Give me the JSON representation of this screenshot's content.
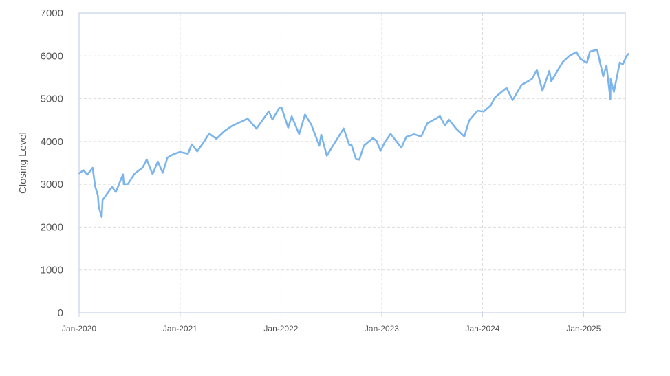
{
  "chart_data": {
    "type": "line",
    "title": "",
    "xlabel": "",
    "ylabel": "Closing Level",
    "ylim": [
      0,
      7000
    ],
    "xlim": [
      "2020-01-01",
      "2025-06-01"
    ],
    "y_ticks": [
      0,
      1000,
      2000,
      3000,
      4000,
      5000,
      6000,
      7000
    ],
    "x_ticks": [
      {
        "date": "2020-01-01",
        "label": "Jan-2020"
      },
      {
        "date": "2021-01-01",
        "label": "Jan-2021"
      },
      {
        "date": "2022-01-01",
        "label": "Jan-2022"
      },
      {
        "date": "2023-01-01",
        "label": "Jan-2023"
      },
      {
        "date": "2024-01-01",
        "label": "Jan-2024"
      },
      {
        "date": "2025-01-01",
        "label": "Jan-2025"
      }
    ],
    "grid": true,
    "legend": "none",
    "line_color": "#7cb5ec",
    "series": [
      {
        "points": [
          [
            "2020-01-02",
            3258
          ],
          [
            "2020-01-17",
            3330
          ],
          [
            "2020-01-31",
            3225
          ],
          [
            "2020-02-19",
            3386
          ],
          [
            "2020-02-28",
            2954
          ],
          [
            "2020-03-09",
            2746
          ],
          [
            "2020-03-12",
            2480
          ],
          [
            "2020-03-16",
            2386
          ],
          [
            "2020-03-23",
            2237
          ],
          [
            "2020-03-26",
            2630
          ],
          [
            "2020-04-08",
            2750
          ],
          [
            "2020-04-29",
            2940
          ],
          [
            "2020-05-13",
            2820
          ],
          [
            "2020-06-08",
            3232
          ],
          [
            "2020-06-11",
            3002
          ],
          [
            "2020-06-26",
            3009
          ],
          [
            "2020-07-20",
            3251
          ],
          [
            "2020-08-18",
            3390
          ],
          [
            "2020-09-02",
            3580
          ],
          [
            "2020-09-23",
            3237
          ],
          [
            "2020-10-12",
            3534
          ],
          [
            "2020-10-30",
            3270
          ],
          [
            "2020-11-16",
            3627
          ],
          [
            "2020-12-08",
            3702
          ],
          [
            "2020-12-31",
            3756
          ],
          [
            "2021-01-29",
            3714
          ],
          [
            "2021-02-12",
            3934
          ],
          [
            "2021-03-04",
            3768
          ],
          [
            "2021-03-26",
            3974
          ],
          [
            "2021-04-16",
            4185
          ],
          [
            "2021-05-12",
            4063
          ],
          [
            "2021-06-11",
            4247
          ],
          [
            "2021-07-09",
            4370
          ],
          [
            "2021-08-16",
            4479
          ],
          [
            "2021-09-02",
            4537
          ],
          [
            "2021-10-04",
            4300
          ],
          [
            "2021-11-18",
            4704
          ],
          [
            "2021-12-01",
            4513
          ],
          [
            "2021-12-27",
            4791
          ],
          [
            "2022-01-03",
            4796
          ],
          [
            "2022-01-27",
            4326
          ],
          [
            "2022-02-09",
            4587
          ],
          [
            "2022-03-08",
            4170
          ],
          [
            "2022-03-29",
            4631
          ],
          [
            "2022-04-21",
            4393
          ],
          [
            "2022-05-20",
            3901
          ],
          [
            "2022-05-27",
            4158
          ],
          [
            "2022-06-16",
            3667
          ],
          [
            "2022-07-08",
            3899
          ],
          [
            "2022-08-16",
            4305
          ],
          [
            "2022-09-06",
            3908
          ],
          [
            "2022-09-13",
            3932
          ],
          [
            "2022-09-30",
            3586
          ],
          [
            "2022-10-12",
            3577
          ],
          [
            "2022-10-28",
            3901
          ],
          [
            "2022-11-30",
            4080
          ],
          [
            "2022-12-13",
            4019
          ],
          [
            "2022-12-28",
            3783
          ],
          [
            "2023-01-12",
            3983
          ],
          [
            "2023-02-02",
            4179
          ],
          [
            "2023-03-13",
            3855
          ],
          [
            "2023-03-31",
            4109
          ],
          [
            "2023-04-28",
            4169
          ],
          [
            "2023-05-24",
            4115
          ],
          [
            "2023-06-15",
            4425
          ],
          [
            "2023-07-31",
            4589
          ],
          [
            "2023-08-18",
            4370
          ],
          [
            "2023-09-01",
            4515
          ],
          [
            "2023-09-29",
            4288
          ],
          [
            "2023-10-27",
            4117
          ],
          [
            "2023-11-14",
            4495
          ],
          [
            "2023-12-14",
            4719
          ],
          [
            "2024-01-05",
            4697
          ],
          [
            "2024-01-31",
            4845
          ],
          [
            "2024-02-15",
            5030
          ],
          [
            "2024-03-28",
            5254
          ],
          [
            "2024-04-19",
            4967
          ],
          [
            "2024-05-21",
            5321
          ],
          [
            "2024-06-28",
            5460
          ],
          [
            "2024-07-16",
            5667
          ],
          [
            "2024-08-05",
            5186
          ],
          [
            "2024-08-30",
            5648
          ],
          [
            "2024-09-06",
            5408
          ],
          [
            "2024-10-18",
            5864
          ],
          [
            "2024-11-11",
            6001
          ],
          [
            "2024-12-06",
            6090
          ],
          [
            "2024-12-20",
            5930
          ],
          [
            "2025-01-13",
            5836
          ],
          [
            "2025-01-24",
            6101
          ],
          [
            "2025-02-19",
            6144
          ],
          [
            "2025-03-13",
            5521
          ],
          [
            "2025-03-25",
            5776
          ],
          [
            "2025-04-08",
            4982
          ],
          [
            "2025-04-09",
            5456
          ],
          [
            "2025-04-21",
            5158
          ],
          [
            "2025-05-12",
            5844
          ],
          [
            "2025-05-23",
            5802
          ],
          [
            "2025-06-06",
            6000
          ],
          [
            "2025-06-12",
            6045
          ]
        ]
      }
    ]
  }
}
